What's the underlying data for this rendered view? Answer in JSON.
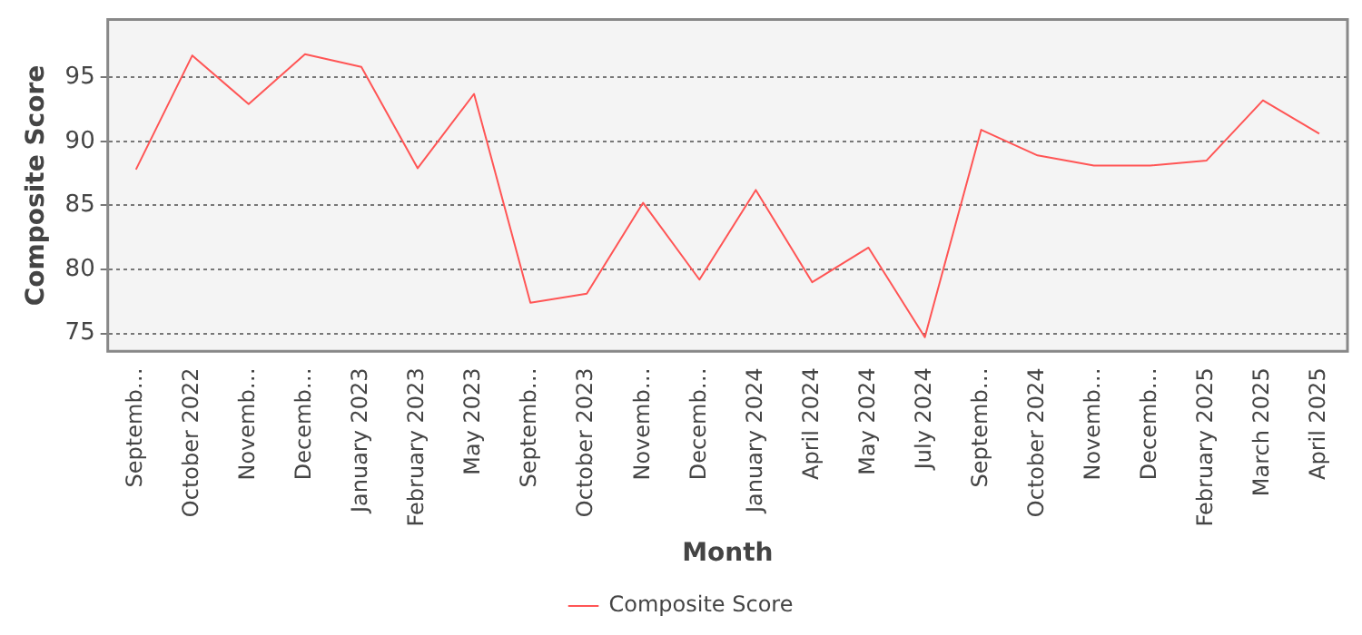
{
  "chart_data": {
    "type": "line",
    "xlabel": "Month",
    "ylabel": "Composite Score",
    "categories": [
      "Septemb…",
      "October 2022",
      "Novemb…",
      "Decemb…",
      "January 2023",
      "February 2023",
      "May 2023",
      "Septemb…",
      "October 2023",
      "Novemb…",
      "Decemb…",
      "January 2024",
      "April 2024",
      "May 2024",
      "July 2024",
      "Septemb…",
      "October 2024",
      "Novemb…",
      "Decemb…",
      "February 2025",
      "March 2025",
      "April 2025"
    ],
    "series": [
      {
        "name": "Composite Score",
        "color": "#ff5555",
        "values": [
          87.8,
          96.7,
          92.9,
          96.8,
          95.8,
          87.9,
          93.7,
          77.4,
          78.1,
          85.2,
          79.2,
          86.2,
          79.0,
          81.7,
          74.7,
          90.9,
          88.9,
          88.1,
          88.1,
          88.5,
          93.2,
          90.6
        ]
      }
    ],
    "ylim": [
      73.6,
      99.5
    ],
    "yticks": [
      75,
      80,
      85,
      90,
      95
    ],
    "grid": "y",
    "legend": "bottom",
    "marker": "none",
    "line_style": "solid"
  }
}
